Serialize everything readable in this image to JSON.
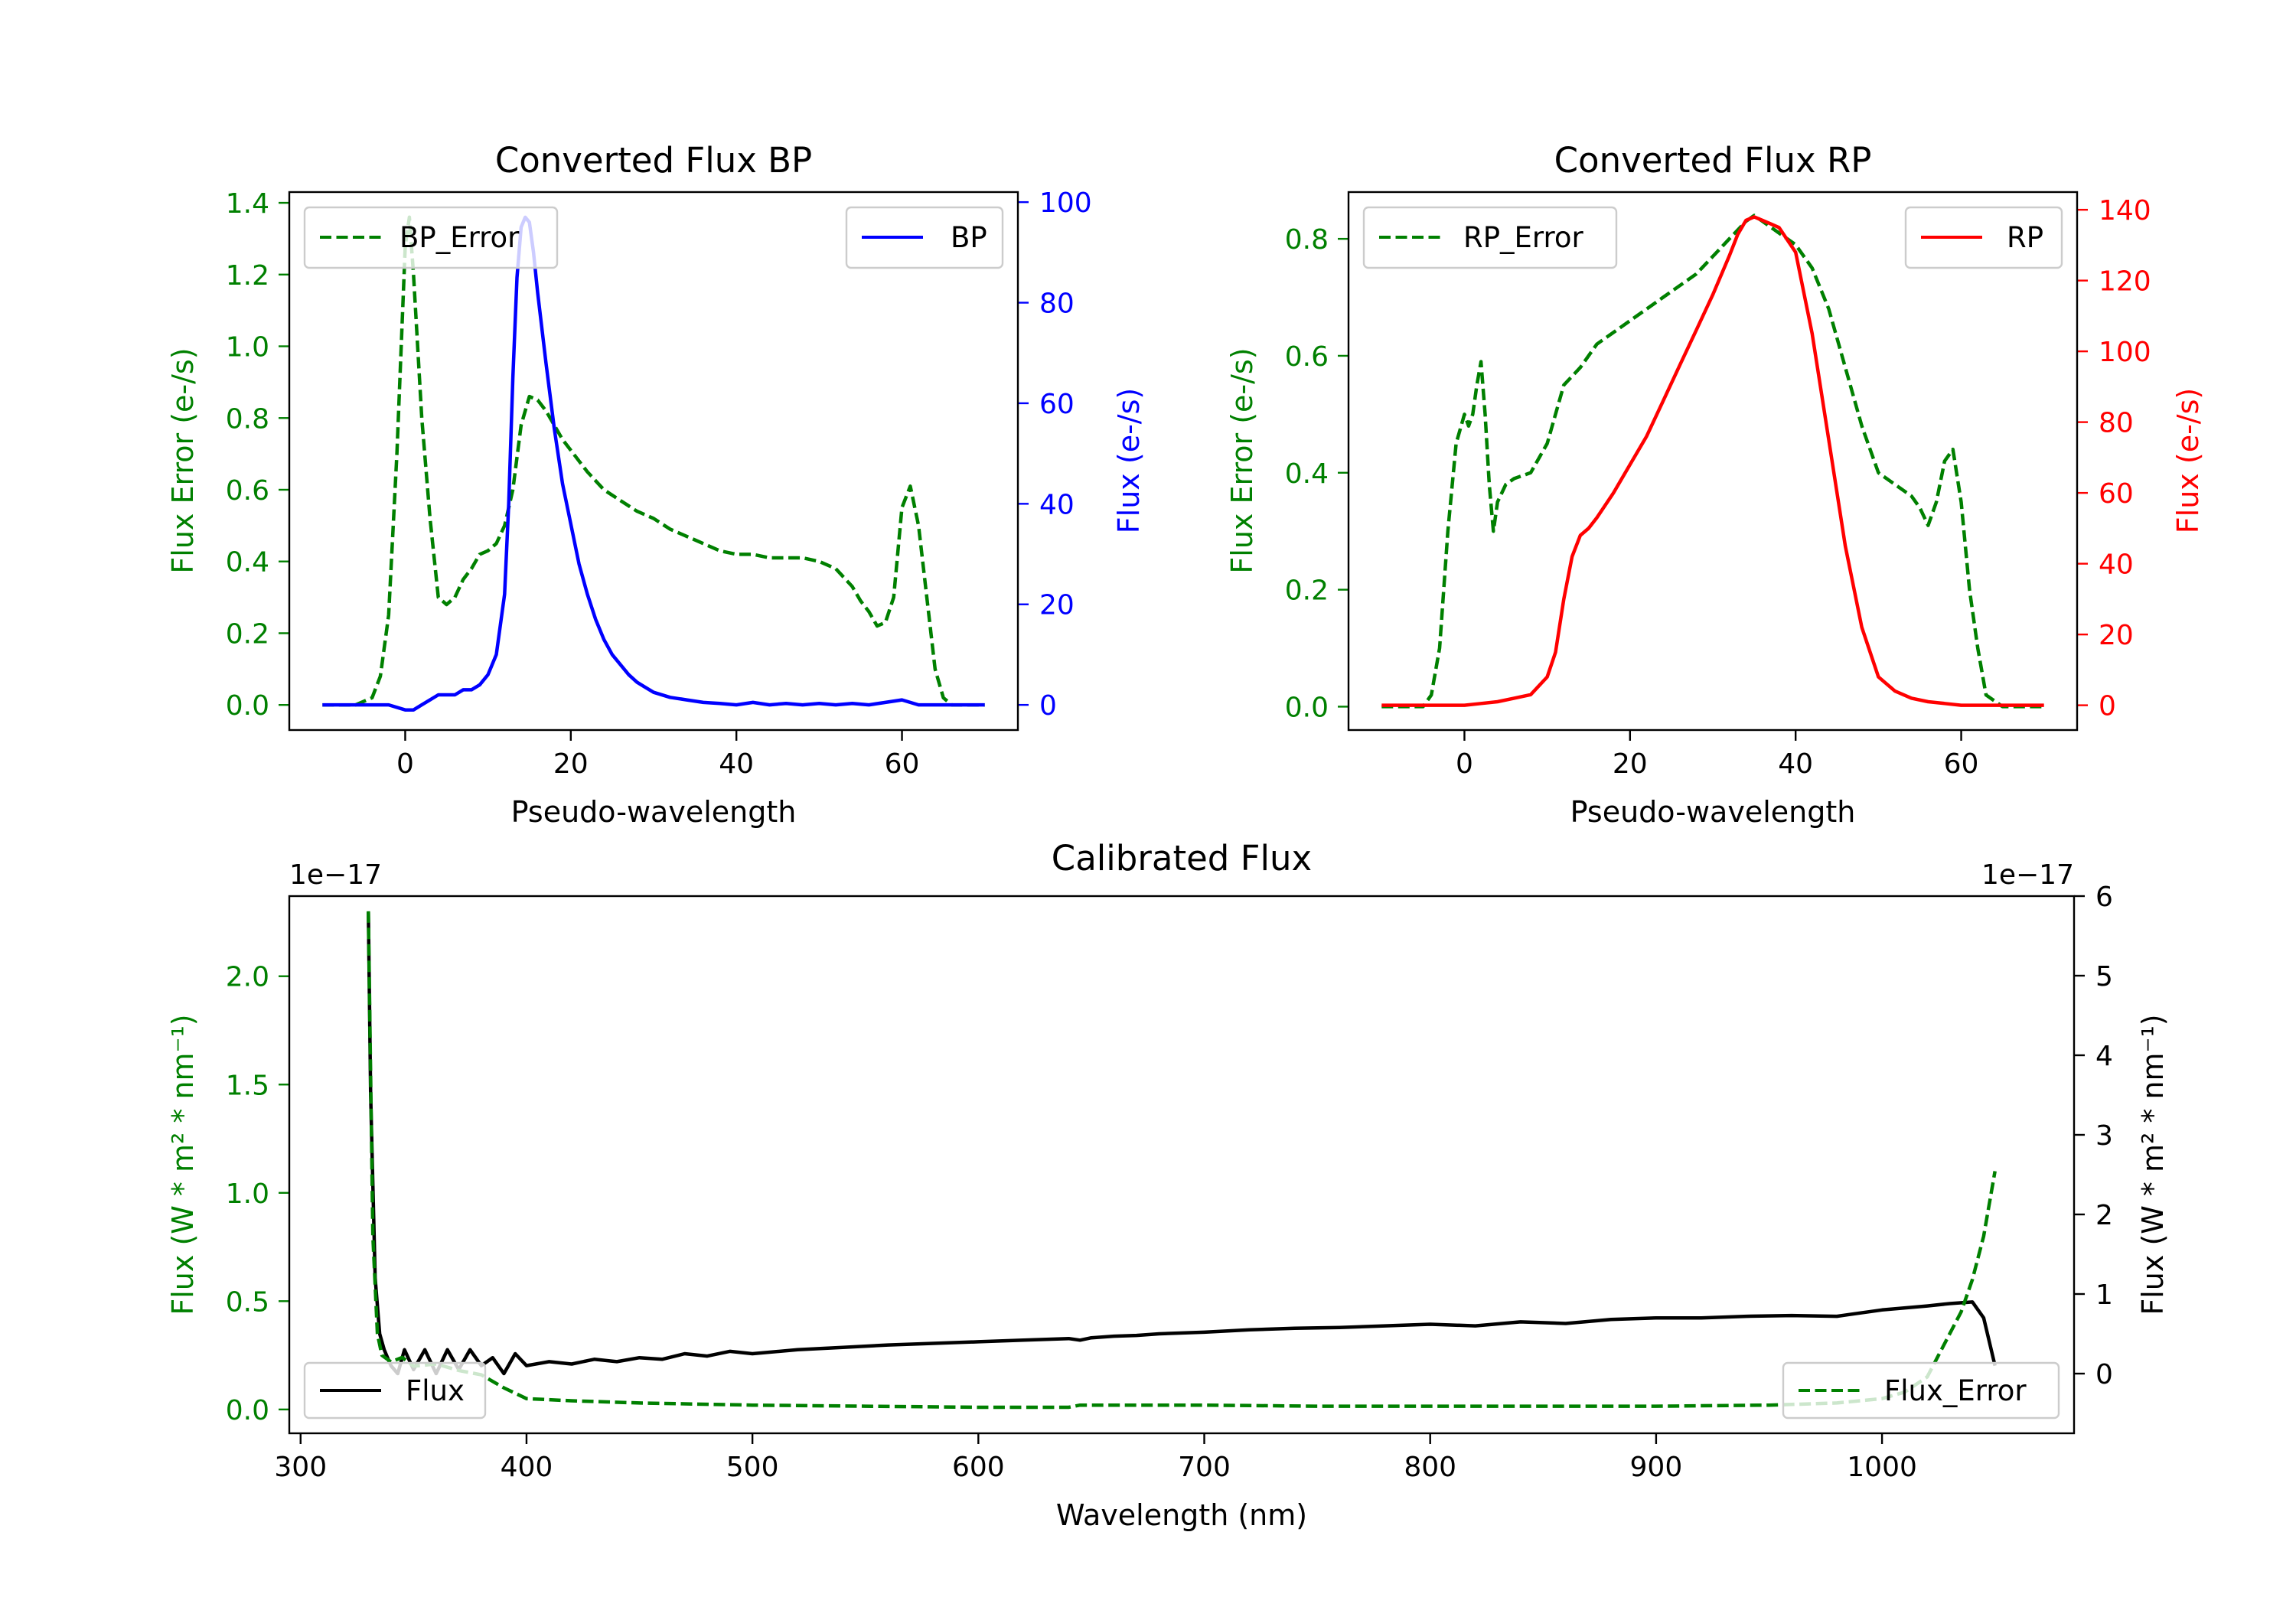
{
  "chart_data": [
    {
      "id": "bp",
      "type": "line",
      "title": "Converted Flux BP",
      "xlabel": "Pseudo-wavelength",
      "xlim": [
        -14,
        74
      ],
      "xticks": [
        0,
        20,
        40,
        60
      ],
      "left_axis": {
        "label": "Flux Error (e-/s)",
        "color": "#008000",
        "ylim": [
          -0.07,
          1.43
        ],
        "ticks": [
          "0.0",
          "0.2",
          "0.4",
          "0.6",
          "0.8",
          "1.0",
          "1.2",
          "1.4"
        ],
        "tick_values": [
          0,
          0.2,
          0.4,
          0.6,
          0.8,
          1.0,
          1.2,
          1.4
        ]
      },
      "right_axis": {
        "label": "Flux (e-/s)",
        "color": "#0000ff",
        "ylim": [
          -5,
          102
        ],
        "ticks": [
          "0",
          "20",
          "40",
          "60",
          "80",
          "100"
        ],
        "tick_values": [
          0,
          20,
          40,
          60,
          80,
          100
        ]
      },
      "series": [
        {
          "name": "BP_Error",
          "axis": "left",
          "color": "#008000",
          "dashed": true,
          "x": [
            -10,
            -6,
            -4,
            -3,
            -2,
            -1,
            0,
            0.5,
            1,
            2,
            3,
            4,
            5,
            6,
            7,
            8,
            9,
            10,
            11,
            12,
            13,
            14,
            15,
            16,
            17,
            18,
            19,
            20,
            22,
            24,
            26,
            28,
            30,
            32,
            34,
            36,
            38,
            40,
            42,
            44,
            46,
            48,
            50,
            52,
            54,
            55,
            56,
            57,
            58,
            59,
            60,
            61,
            62,
            63,
            64,
            65,
            66,
            68,
            70
          ],
          "values": [
            0,
            0,
            0.02,
            0.08,
            0.25,
            0.7,
            1.28,
            1.36,
            1.2,
            0.8,
            0.52,
            0.3,
            0.28,
            0.3,
            0.35,
            0.38,
            0.42,
            0.43,
            0.45,
            0.5,
            0.6,
            0.78,
            0.86,
            0.85,
            0.82,
            0.78,
            0.74,
            0.71,
            0.65,
            0.6,
            0.57,
            0.54,
            0.52,
            0.49,
            0.47,
            0.45,
            0.43,
            0.42,
            0.42,
            0.41,
            0.41,
            0.41,
            0.4,
            0.38,
            0.33,
            0.29,
            0.26,
            0.22,
            0.23,
            0.3,
            0.55,
            0.61,
            0.5,
            0.3,
            0.1,
            0.02,
            0,
            0,
            0
          ]
        },
        {
          "name": "BP",
          "axis": "right",
          "color": "#0000ff",
          "dashed": false,
          "x": [
            -10,
            -5,
            -2,
            0,
            1,
            2,
            3,
            4,
            5,
            6,
            7,
            8,
            9,
            10,
            11,
            12,
            12.5,
            13,
            13.5,
            14,
            14.5,
            15,
            15.5,
            16,
            17,
            18,
            19,
            20,
            21,
            22,
            23,
            24,
            25,
            26,
            27,
            28,
            29,
            30,
            32,
            34,
            36,
            38,
            40,
            42,
            44,
            46,
            48,
            50,
            52,
            54,
            56,
            58,
            60,
            62,
            64,
            66,
            68,
            70
          ],
          "values": [
            0,
            0,
            0,
            -1,
            -1,
            0,
            1,
            2,
            2,
            2,
            3,
            3,
            4,
            6,
            10,
            22,
            40,
            65,
            85,
            95,
            97,
            96,
            90,
            82,
            68,
            55,
            44,
            36,
            28,
            22,
            17,
            13,
            10,
            8,
            6,
            4.5,
            3.5,
            2.5,
            1.5,
            1,
            0.5,
            0.3,
            0,
            0.5,
            0,
            0.3,
            0,
            0.3,
            0,
            0.3,
            0,
            0.5,
            1,
            0,
            0,
            0,
            0,
            0
          ]
        }
      ],
      "legend": [
        {
          "label": "BP_Error",
          "position": "upper-left"
        },
        {
          "label": "BP",
          "position": "upper-right"
        }
      ]
    },
    {
      "id": "rp",
      "type": "line",
      "title": "Converted Flux RP",
      "xlabel": "Pseudo-wavelength",
      "xlim": [
        -14,
        74
      ],
      "xticks": [
        0,
        20,
        40,
        60
      ],
      "left_axis": {
        "label": "Flux Error (e-/s)",
        "color": "#008000",
        "ylim": [
          -0.04,
          0.88
        ],
        "ticks": [
          "0.0",
          "0.2",
          "0.4",
          "0.6",
          "0.8"
        ],
        "tick_values": [
          0,
          0.2,
          0.4,
          0.6,
          0.8
        ]
      },
      "right_axis": {
        "label": "Flux (e-/s)",
        "color": "#ff0000",
        "ylim": [
          -7,
          145
        ],
        "ticks": [
          "0",
          "20",
          "40",
          "60",
          "80",
          "100",
          "120",
          "140"
        ],
        "tick_values": [
          0,
          20,
          40,
          60,
          80,
          100,
          120,
          140
        ]
      },
      "series": [
        {
          "name": "RP_Error",
          "axis": "left",
          "color": "#008000",
          "dashed": true,
          "x": [
            -10,
            -5,
            -4,
            -3,
            -2,
            -1,
            0,
            0.5,
            1,
            1.5,
            2,
            2.5,
            3,
            3.5,
            4,
            5,
            6,
            8,
            10,
            12,
            14,
            16,
            18,
            20,
            22,
            24,
            26,
            28,
            30,
            32,
            34,
            35,
            36,
            38,
            40,
            42,
            44,
            46,
            48,
            50,
            52,
            54,
            55,
            56,
            57,
            58,
            59,
            60,
            61,
            62,
            63,
            65,
            70
          ],
          "values": [
            0,
            0,
            0.02,
            0.1,
            0.3,
            0.45,
            0.5,
            0.48,
            0.5,
            0.55,
            0.59,
            0.5,
            0.38,
            0.3,
            0.35,
            0.38,
            0.39,
            0.4,
            0.45,
            0.55,
            0.58,
            0.62,
            0.64,
            0.66,
            0.68,
            0.7,
            0.72,
            0.74,
            0.77,
            0.8,
            0.83,
            0.84,
            0.83,
            0.81,
            0.79,
            0.75,
            0.68,
            0.58,
            0.48,
            0.4,
            0.38,
            0.36,
            0.34,
            0.31,
            0.35,
            0.42,
            0.44,
            0.35,
            0.2,
            0.1,
            0.02,
            0,
            0
          ]
        },
        {
          "name": "RP",
          "axis": "right",
          "color": "#ff0000",
          "dashed": false,
          "x": [
            -10,
            -5,
            0,
            2,
            4,
            6,
            8,
            10,
            11,
            12,
            13,
            14,
            15,
            16,
            18,
            20,
            22,
            24,
            26,
            28,
            30,
            32,
            33,
            34,
            35,
            36,
            37,
            38,
            40,
            42,
            44,
            46,
            48,
            50,
            52,
            54,
            56,
            58,
            60,
            62,
            64,
            66,
            68,
            70
          ],
          "values": [
            0,
            0,
            0,
            0.5,
            1,
            2,
            3,
            8,
            15,
            30,
            42,
            48,
            50,
            53,
            60,
            68,
            76,
            86,
            96,
            106,
            116,
            127,
            133,
            137,
            138,
            137,
            136,
            135,
            128,
            105,
            75,
            45,
            22,
            8,
            4,
            2,
            1,
            0.5,
            0,
            0,
            0,
            0,
            0,
            0
          ]
        }
      ],
      "legend": [
        {
          "label": "RP_Error",
          "position": "upper-left"
        },
        {
          "label": "RP",
          "position": "upper-right"
        }
      ]
    },
    {
      "id": "cal",
      "type": "line",
      "title": "Calibrated Flux",
      "xlabel": "Wavelength (nm)",
      "xlim": [
        295,
        1085
      ],
      "xticks": [
        300,
        400,
        500,
        600,
        700,
        800,
        900,
        1000
      ],
      "left_axis": {
        "label": "Flux (W * m² * nm⁻¹)",
        "color": "#008000",
        "ylim": [
          -0.11,
          2.37
        ],
        "ticks": [
          "0.0",
          "0.5",
          "1.0",
          "1.5",
          "2.0"
        ],
        "tick_values": [
          0,
          0.5,
          1.0,
          1.5,
          2.0
        ],
        "offset": "1e−17"
      },
      "right_axis": {
        "label": "Flux (W * m² * nm⁻¹)",
        "color": "#000000",
        "ylim": [
          -0.75,
          6.0
        ],
        "ticks": [
          "0",
          "1",
          "2",
          "3",
          "4",
          "5",
          "6"
        ],
        "tick_values": [
          0,
          1,
          2,
          3,
          4,
          5,
          6
        ],
        "offset": "1e−17"
      },
      "series": [
        {
          "name": "Flux",
          "axis": "right",
          "color": "#000000",
          "dashed": false,
          "x": [
            330,
            331,
            333,
            335,
            337,
            340,
            343,
            346,
            350,
            355,
            360,
            365,
            370,
            375,
            380,
            385,
            390,
            395,
            400,
            410,
            420,
            430,
            440,
            450,
            460,
            470,
            480,
            490,
            500,
            520,
            540,
            560,
            580,
            600,
            620,
            640,
            645,
            650,
            660,
            670,
            680,
            700,
            720,
            740,
            760,
            780,
            800,
            820,
            840,
            860,
            880,
            900,
            920,
            940,
            960,
            980,
            1000,
            1020,
            1030,
            1040,
            1045,
            1050
          ],
          "values": [
            5.8,
            3.5,
            1.2,
            0.5,
            0.3,
            0.1,
            0.0,
            0.3,
            0.05,
            0.3,
            0.0,
            0.3,
            0.05,
            0.3,
            0.1,
            0.2,
            0.0,
            0.25,
            0.1,
            0.15,
            0.12,
            0.18,
            0.15,
            0.2,
            0.18,
            0.25,
            0.22,
            0.28,
            0.25,
            0.3,
            0.33,
            0.36,
            0.38,
            0.4,
            0.42,
            0.44,
            0.42,
            0.45,
            0.47,
            0.48,
            0.5,
            0.52,
            0.55,
            0.57,
            0.58,
            0.6,
            0.62,
            0.6,
            0.65,
            0.63,
            0.68,
            0.7,
            0.7,
            0.72,
            0.73,
            0.72,
            0.8,
            0.85,
            0.88,
            0.9,
            0.7,
            0.1
          ]
        },
        {
          "name": "Flux_Error",
          "axis": "left",
          "color": "#008000",
          "dashed": true,
          "x": [
            330,
            332,
            334,
            336,
            340,
            345,
            350,
            360,
            370,
            380,
            390,
            400,
            420,
            450,
            500,
            550,
            600,
            640,
            645,
            700,
            750,
            800,
            850,
            900,
            950,
            980,
            1000,
            1010,
            1020,
            1025,
            1030,
            1035,
            1040,
            1045,
            1050
          ],
          "values": [
            2.3,
            0.8,
            0.35,
            0.25,
            0.22,
            0.24,
            0.2,
            0.21,
            0.18,
            0.16,
            0.1,
            0.05,
            0.04,
            0.03,
            0.02,
            0.015,
            0.01,
            0.01,
            0.02,
            0.02,
            0.015,
            0.015,
            0.015,
            0.015,
            0.02,
            0.03,
            0.05,
            0.08,
            0.15,
            0.25,
            0.35,
            0.45,
            0.6,
            0.8,
            1.1
          ]
        }
      ],
      "legend": [
        {
          "label": "Flux",
          "position": "lower-left"
        },
        {
          "label": "Flux_Error",
          "position": "lower-right"
        }
      ]
    }
  ]
}
